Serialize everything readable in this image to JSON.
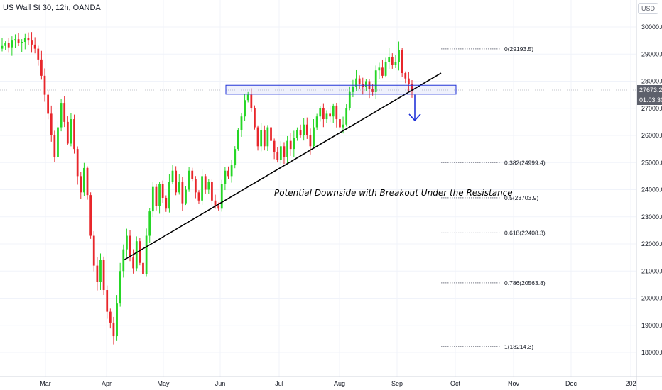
{
  "header": {
    "title": "US Wall St 30, 12h, OANDA"
  },
  "currency_button": {
    "label": "USD"
  },
  "price_scale": {
    "ticks": [
      "30000.0",
      "29000.0",
      "28000.0",
      "27000.0",
      "26000.0",
      "25000.0",
      "24000.0",
      "23000.0",
      "22000.0",
      "21000.0",
      "20000.0",
      "19000.0",
      "18000.0"
    ]
  },
  "last_price_label": {
    "value": "27673.2",
    "countdown": "01:03:30"
  },
  "time_axis": {
    "labels": [
      "Mar",
      "Apr",
      "May",
      "Jun",
      "Jul",
      "Aug",
      "Sep",
      "Oct",
      "Nov",
      "Dec",
      "202"
    ]
  },
  "fib_levels": [
    {
      "label": "0(29193.5)",
      "price": 29193.5
    },
    {
      "label": "0.382(24999.4)",
      "price": 24999.4
    },
    {
      "label": "0.5(23703.9)",
      "price": 23703.9
    },
    {
      "label": "0.618(22408.3)",
      "price": 22408.3
    },
    {
      "label": "0.786(20563.8)",
      "price": 20563.8
    },
    {
      "label": "1(18214.3)",
      "price": 18214.3
    }
  ],
  "annotation": {
    "text": "Potential Downside with Breakout Under the Resistance"
  },
  "colors": {
    "up": "#26d626",
    "down": "#e8262b",
    "trendline": "#000000",
    "resistance": "#2133d8",
    "arrow": "#2133d8",
    "grid": "#f0f3fa",
    "fib": "#787b86",
    "last_price_bg": "#5d606b"
  },
  "chart_data": {
    "type": "candlestick",
    "symbol": "US Wall St 30",
    "timeframe": "12h",
    "source": "OANDA",
    "x_axis_months": [
      "Mar",
      "Apr",
      "May",
      "Jun",
      "Jul",
      "Aug",
      "Sep",
      "Oct",
      "Nov",
      "Dec",
      "202"
    ],
    "ylim": [
      17500,
      30500
    ],
    "last_price": 27673.2,
    "closes": [
      29300,
      29400,
      29250,
      29500,
      29550,
      29400,
      29450,
      29600,
      29500,
      29350,
      29200,
      28800,
      28200,
      27500,
      26800,
      26000,
      25200,
      26300,
      27200,
      26500,
      25700,
      26600,
      25500,
      24500,
      23900,
      24800,
      23800,
      22300,
      21200,
      20600,
      21400,
      20300,
      19500,
      19100,
      18600,
      19800,
      21000,
      21800,
      22300,
      21500,
      21100,
      22100,
      21300,
      20900,
      22300,
      23200,
      24100,
      23400,
      24200,
      23700,
      23300,
      24300,
      24700,
      23900,
      24300,
      23500,
      24000,
      24700,
      24400,
      23900,
      23600,
      24500,
      24000,
      24300,
      23600,
      23400,
      23300,
      24200,
      24700,
      24500,
      24900,
      25500,
      26200,
      26700,
      27300,
      27500,
      27000,
      26300,
      25600,
      26200,
      25600,
      26300,
      25800,
      25400,
      25100,
      25600,
      25200,
      25800,
      25500,
      25900,
      26200,
      26000,
      26400,
      26000,
      25600,
      26300,
      26700,
      27000,
      26600,
      26800,
      26700,
      27100,
      26600,
      26300,
      26400,
      27000,
      27600,
      27800,
      28100,
      27900,
      27800,
      28000,
      27700,
      27600,
      28400,
      28500,
      28200,
      28700,
      28900,
      28600,
      28700,
      29150,
      28300,
      28100,
      27900,
      27650
    ],
    "drawings": {
      "trendline": {
        "from": [
          "Apr",
          21400
        ],
        "to": [
          "Oct",
          28300
        ]
      },
      "resistance_zone": {
        "from": "Jun",
        "to": "Oct",
        "high": 27850,
        "low": 27520
      },
      "projection_arrow": {
        "from": 27500,
        "to": 26550
      }
    }
  }
}
